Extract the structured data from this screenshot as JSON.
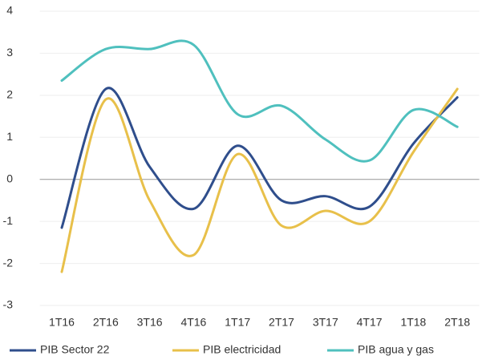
{
  "chart_data": {
    "type": "line",
    "categories": [
      "1T16",
      "2T16",
      "3T16",
      "4T16",
      "1T17",
      "2T17",
      "3T17",
      "4T17",
      "1T18",
      "2T18"
    ],
    "series": [
      {
        "name": "PIB Sector 22",
        "color": "#2f4e8c",
        "values": [
          -1.15,
          2.15,
          0.3,
          -0.7,
          0.8,
          -0.5,
          -0.4,
          -0.65,
          0.85,
          1.95
        ]
      },
      {
        "name": "PIB electricidad",
        "color": "#e8c04a",
        "values": [
          -2.2,
          1.9,
          -0.5,
          -1.8,
          0.6,
          -1.1,
          -0.75,
          -1.0,
          0.65,
          2.15
        ]
      },
      {
        "name": "PIB agua y gas",
        "color": "#4fc0be",
        "values": [
          2.35,
          3.1,
          3.1,
          3.2,
          1.55,
          1.75,
          0.95,
          0.45,
          1.65,
          1.25
        ]
      }
    ],
    "ylim": [
      -3,
      4
    ],
    "yticks": [
      -3,
      -2,
      -1,
      0,
      1,
      2,
      3,
      4
    ],
    "grid": true,
    "legend": "bottom"
  }
}
